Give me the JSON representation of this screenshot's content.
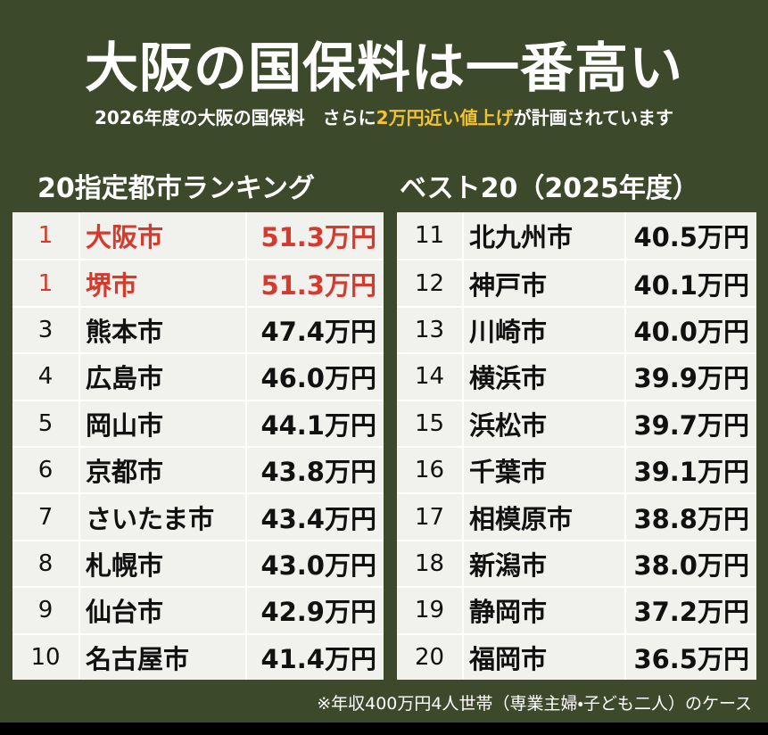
{
  "header": {
    "title": "大阪の国保料は一番高い",
    "subtitle": [
      "2026年度の大阪の国保料　さらに",
      "2万円近い値上げ",
      "が計画されています"
    ]
  },
  "ranking_heading": [
    "20指定都市ランキング",
    "ベスト20（2025年度）"
  ],
  "tables": [
    {
      "rows": [
        [
          "1",
          "大阪市",
          "51.3万円"
        ],
        [
          "1",
          "堺市",
          "51.3万円"
        ],
        [
          "3",
          "熊本市",
          "47.4万円"
        ],
        [
          "4",
          "広島市",
          "46.0万円"
        ],
        [
          "5",
          "岡山市",
          "44.1万円"
        ],
        [
          "6",
          "京都市",
          "43.8万円"
        ],
        [
          "7",
          "さいたま市",
          "43.4万円"
        ],
        [
          "8",
          "札幌市",
          "43.0万円"
        ],
        [
          "9",
          "仙台市",
          "42.9万円"
        ],
        [
          "10",
          "名古屋市",
          "41.4万円"
        ]
      ]
    },
    {
      "rows": [
        [
          "11",
          "北九州市",
          "40.5万円"
        ],
        [
          "12",
          "神戸市",
          "40.1万円"
        ],
        [
          "13",
          "川崎市",
          "40.0万円"
        ],
        [
          "14",
          "横浜市",
          "39.9万円"
        ],
        [
          "15",
          "浜松市",
          "39.7万円"
        ],
        [
          "16",
          "千葉市",
          "39.1万円"
        ],
        [
          "17",
          "相模原市",
          "38.8万円"
        ],
        [
          "18",
          "新潟市",
          "38.0万円"
        ],
        [
          "19",
          "静岡市",
          "37.2万円"
        ],
        [
          "20",
          "福岡市",
          "36.5万円"
        ]
      ]
    }
  ],
  "footnote": "※年収400万円4人世帯（専業主婦・子ども二人）のケース"
}
